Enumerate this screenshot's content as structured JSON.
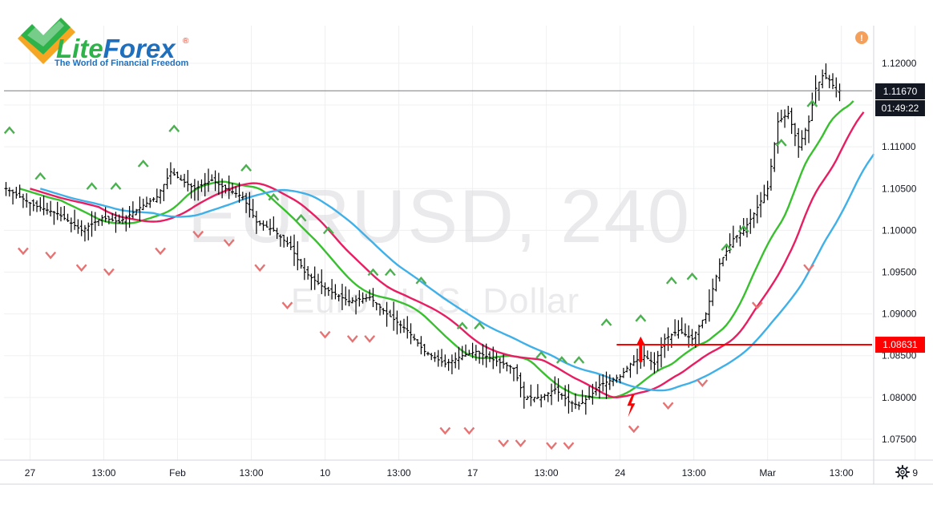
{
  "logo": {
    "name_part1": "Lite",
    "name_part2": "Forex",
    "registered": "®",
    "tagline": "The World of Financial Freedom",
    "green": "#2db34a",
    "orange": "#f5a623",
    "blue": "#1f6fbf"
  },
  "watermark": {
    "symbol": "EURUSD, 240",
    "description": "Euro / U.S. Dollar"
  },
  "alert_icon": "!",
  "settings_icon": "gear-icon",
  "price_badges": {
    "current_price": "1.11670",
    "countdown": "01:49:22",
    "level_price": "1.08631"
  },
  "colors": {
    "green_ma": "#38c02e",
    "pink_ma": "#e81e63",
    "blue_ma": "#3fb0e8",
    "candle": "#000000",
    "fractal_up": "#4caf50",
    "fractal_down": "#e57373",
    "level_line": "#ff0000",
    "signal_arrow": "#ff0000",
    "alert": "#f5a05a"
  },
  "chart_data": {
    "type": "line",
    "title": "EURUSD, 240",
    "subtitle": "Euro / U.S. Dollar",
    "timeframe": "240",
    "grid": true,
    "yaxis_position": "right",
    "ylim": [
      1.0725,
      1.1245
    ],
    "y_ticks": [
      "1.07500",
      "1.08000",
      "1.08500",
      "1.09000",
      "1.09500",
      "1.10000",
      "1.10500",
      "1.11000",
      "1.11500",
      "1.12000"
    ],
    "x_ticks": [
      "27",
      "13:00",
      "Feb",
      "13:00",
      "10",
      "13:00",
      "17",
      "13:00",
      "24",
      "13:00",
      "Mar",
      "13:00",
      "9"
    ],
    "x_tick_bars": [
      7,
      28.5,
      50,
      71.5,
      93,
      114.5,
      136,
      157.5,
      179,
      200.5,
      222,
      243.5,
      265
    ],
    "bar_count": 244,
    "close_anchors": [
      [
        0,
        1.105
      ],
      [
        8,
        1.103
      ],
      [
        15,
        1.102
      ],
      [
        22,
        1.1
      ],
      [
        28,
        1.1015
      ],
      [
        33,
        1.101
      ],
      [
        40,
        1.103
      ],
      [
        44,
        1.104
      ],
      [
        48,
        1.107
      ],
      [
        51,
        1.106
      ],
      [
        55,
        1.105
      ],
      [
        60,
        1.106
      ],
      [
        64,
        1.105
      ],
      [
        69,
        1.104
      ],
      [
        73,
        1.101
      ],
      [
        78,
        1.1
      ],
      [
        83,
        1.098
      ],
      [
        87,
        1.095
      ],
      [
        93,
        1.093
      ],
      [
        100,
        1.0915
      ],
      [
        106,
        1.092
      ],
      [
        111,
        1.09
      ],
      [
        117,
        1.088
      ],
      [
        122,
        1.0855
      ],
      [
        128,
        1.084
      ],
      [
        133,
        1.085
      ],
      [
        137,
        1.0855
      ],
      [
        142,
        1.0845
      ],
      [
        148,
        1.0835
      ],
      [
        151,
        1.08
      ],
      [
        156,
        1.08
      ],
      [
        160,
        1.081
      ],
      [
        164,
        1.0795
      ],
      [
        167,
        1.079
      ],
      [
        171,
        1.0805
      ],
      [
        173,
        1.0815
      ],
      [
        176,
        1.082
      ],
      [
        179,
        1.0825
      ],
      [
        182,
        1.084
      ],
      [
        186,
        1.085
      ],
      [
        189,
        1.084
      ],
      [
        192,
        1.087
      ],
      [
        196,
        1.088
      ],
      [
        200,
        1.087
      ],
      [
        204,
        1.09
      ],
      [
        208,
        1.096
      ],
      [
        212,
        1.099
      ],
      [
        215,
        1.1
      ],
      [
        218,
        1.102
      ],
      [
        222,
        1.105
      ],
      [
        225,
        1.113
      ],
      [
        228,
        1.114
      ],
      [
        231,
        1.11
      ],
      [
        234,
        1.113
      ],
      [
        236,
        1.117
      ],
      [
        238,
        1.1185
      ],
      [
        240,
        1.118
      ],
      [
        242,
        1.1167
      ]
    ],
    "level_line": {
      "price": 1.08631,
      "start_bar": 178,
      "label": "1.08631"
    },
    "current_price_line": {
      "price": 1.1167,
      "label": "1.11670"
    },
    "signal_arrow": {
      "bar": 185,
      "price": 1.085,
      "direction": "up"
    },
    "lightning_marker": {
      "bar": 182,
      "price": 1.079
    },
    "fractals": {
      "up": [
        [
          1,
          1.112
        ],
        [
          10,
          1.1065
        ],
        [
          25,
          1.1053
        ],
        [
          32,
          1.1053
        ],
        [
          40,
          1.108
        ],
        [
          49,
          1.1122
        ],
        [
          70,
          1.1075
        ],
        [
          78,
          1.104
        ],
        [
          86,
          1.1015
        ],
        [
          94,
          1.1
        ],
        [
          107,
          1.095
        ],
        [
          112,
          1.095
        ],
        [
          121,
          1.094
        ],
        [
          133,
          1.0886
        ],
        [
          138,
          1.0886
        ],
        [
          156,
          1.0851
        ],
        [
          162,
          1.0845
        ],
        [
          167,
          1.0845
        ],
        [
          175,
          1.089
        ],
        [
          185,
          1.0895
        ],
        [
          194,
          1.094
        ],
        [
          200,
          1.0945
        ],
        [
          210,
          1.098
        ],
        [
          215,
          1.1002
        ],
        [
          226,
          1.1105
        ],
        [
          235,
          1.1152
        ]
      ],
      "down": [
        [
          5,
          1.0975
        ],
        [
          13,
          1.097
        ],
        [
          22,
          1.0955
        ],
        [
          30,
          1.095
        ],
        [
          45,
          1.0975
        ],
        [
          56,
          1.0995
        ],
        [
          65,
          1.0985
        ],
        [
          74,
          1.0955
        ],
        [
          82,
          1.091
        ],
        [
          93,
          1.0875
        ],
        [
          101,
          1.087
        ],
        [
          106,
          1.087
        ],
        [
          128,
          1.076
        ],
        [
          135,
          1.076
        ],
        [
          145,
          1.0745
        ],
        [
          150,
          1.0745
        ],
        [
          159,
          1.0742
        ],
        [
          164,
          1.0742
        ],
        [
          183,
          1.0762
        ],
        [
          193,
          1.079
        ],
        [
          203,
          1.0817
        ],
        [
          219,
          1.091
        ],
        [
          234,
          1.0955
        ]
      ]
    },
    "series": [
      {
        "color": "#38c02e",
        "period": 13
      },
      {
        "color": "#e81e63",
        "period": 21
      },
      {
        "color": "#3fb0e8",
        "period": 34
      }
    ]
  }
}
